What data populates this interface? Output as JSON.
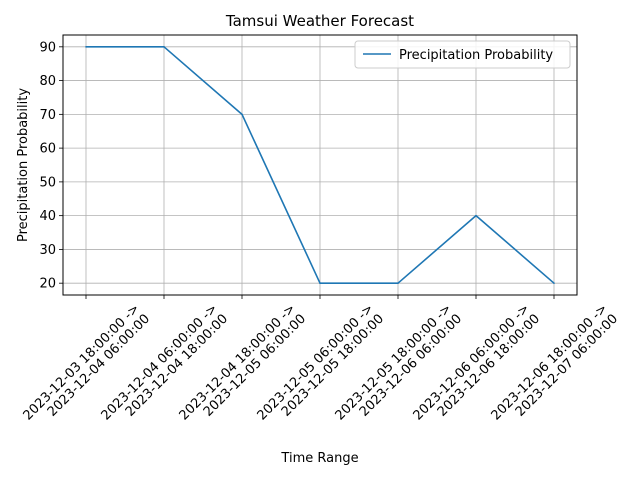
{
  "chart_data": {
    "type": "line",
    "title": "Tamsui Weather Forecast",
    "xlabel": "Time Range",
    "ylabel": "Precipitation Probability",
    "categories": [
      [
        "2023-12-03 18:00:00 ->",
        "2023-12-04 06:00:00"
      ],
      [
        "2023-12-04 06:00:00 ->",
        "2023-12-04 18:00:00"
      ],
      [
        "2023-12-04 18:00:00 ->",
        "2023-12-05 06:00:00"
      ],
      [
        "2023-12-05 06:00:00 ->",
        "2023-12-05 18:00:00"
      ],
      [
        "2023-12-05 18:00:00 ->",
        "2023-12-06 06:00:00"
      ],
      [
        "2023-12-06 06:00:00 ->",
        "2023-12-06 18:00:00"
      ],
      [
        "2023-12-06 18:00:00 ->",
        "2023-12-07 06:00:00"
      ]
    ],
    "series": [
      {
        "name": "Precipitation Probability",
        "values": [
          90,
          90,
          70,
          20,
          20,
          40,
          20
        ],
        "color": "#1f77b4"
      }
    ],
    "ylim": [
      16.5,
      93.5
    ],
    "yticks": [
      20,
      30,
      40,
      50,
      60,
      70,
      80,
      90
    ],
    "grid": true,
    "legend": "top-right"
  }
}
